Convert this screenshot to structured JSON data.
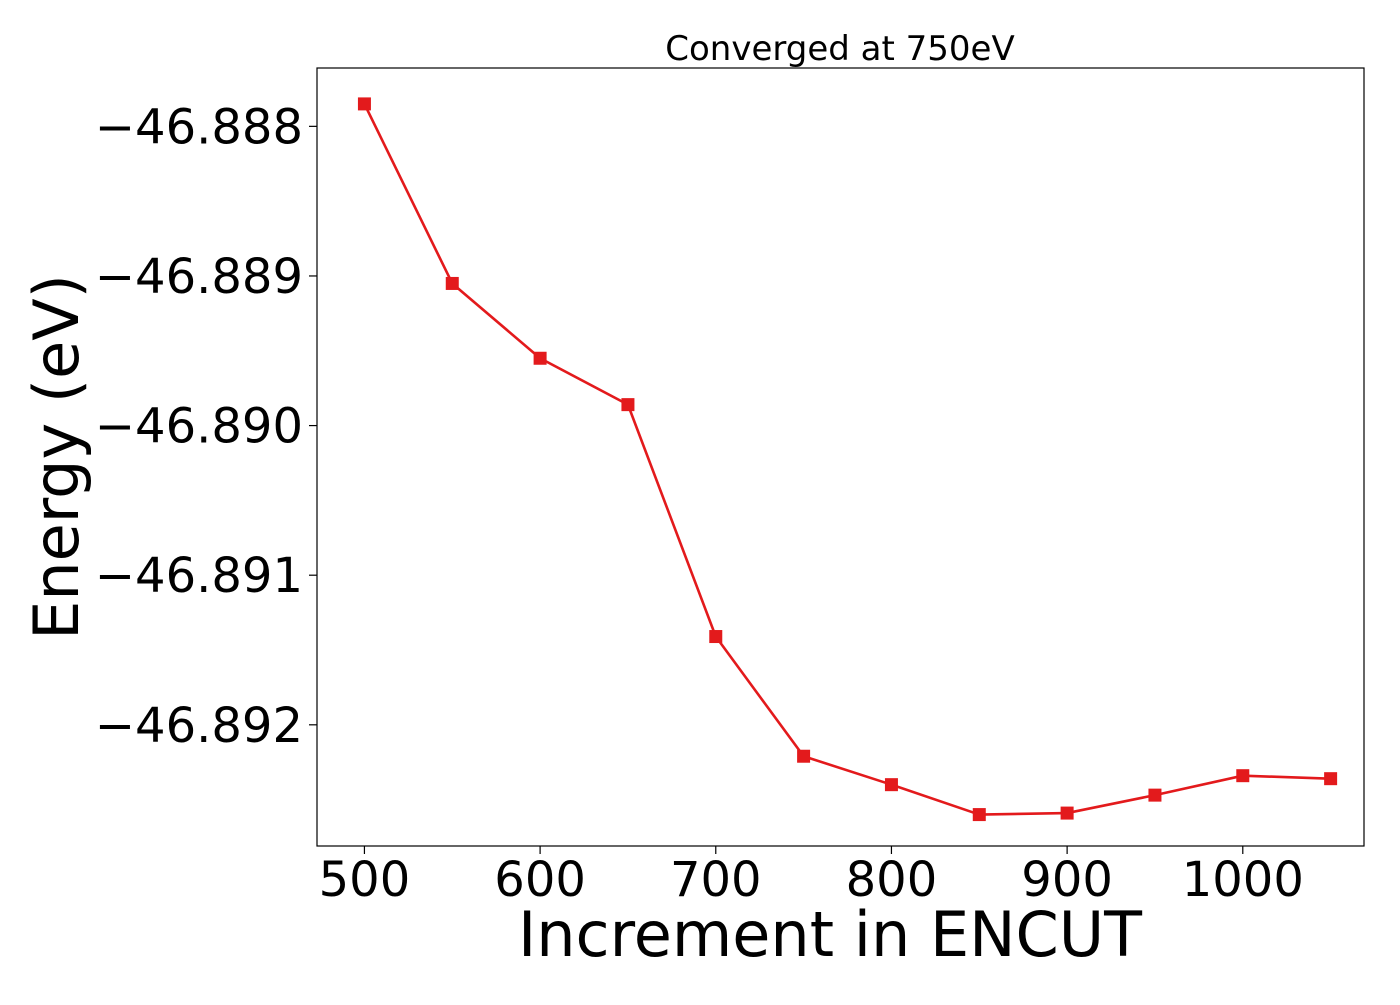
{
  "chart_data": {
    "type": "line",
    "title": "Converged at 750eV",
    "xlabel": "Increment in ENCUT",
    "ylabel": "Energy (eV)",
    "x": [
      500,
      550,
      600,
      650,
      700,
      750,
      800,
      850,
      900,
      950,
      1000,
      1050
    ],
    "series": [
      {
        "values": [
          -46.88785,
          -46.88905,
          -46.88955,
          -46.88986,
          -46.89141,
          -46.89221,
          -46.8924,
          -46.8926,
          -46.89259,
          -46.89247,
          -46.89234,
          -46.89236
        ],
        "color": "#e31a1c",
        "marker": "square"
      }
    ],
    "xlim": [
      473,
      1069
    ],
    "ylim": [
      -46.89281,
      -46.88761
    ],
    "xticks": [
      500,
      600,
      700,
      800,
      900,
      1000
    ],
    "xtick_labels": [
      "500",
      "600",
      "700",
      "800",
      "900",
      "1000"
    ],
    "yticks": [
      -46.888,
      -46.889,
      -46.89,
      -46.891,
      -46.892
    ],
    "ytick_labels": [
      "−46.888",
      "−46.889",
      "−46.890",
      "−46.891",
      "−46.892"
    ],
    "grid": false,
    "legend": "none"
  }
}
